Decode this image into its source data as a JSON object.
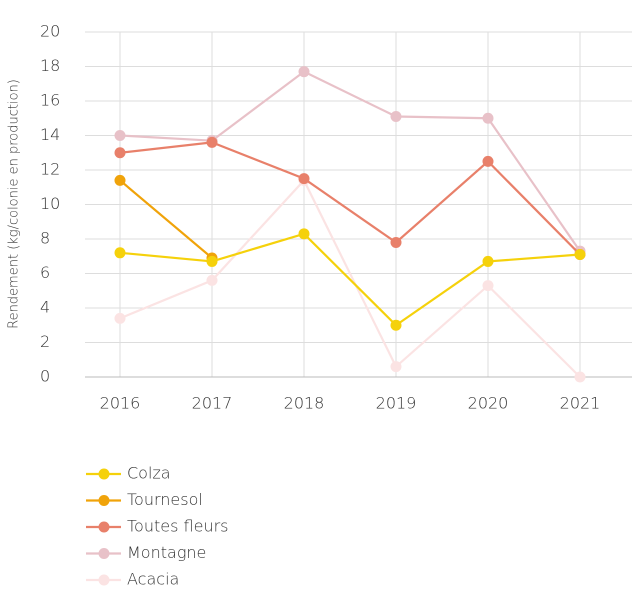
{
  "chart_data": {
    "type": "line",
    "y_label": "Rendement (kg/colonie en production)",
    "categories": [
      "2016",
      "2017",
      "2018",
      "2019",
      "2020",
      "2021"
    ],
    "series": [
      {
        "name": "Colza",
        "color": "#f5d10b",
        "values": [
          7.2,
          6.7,
          8.3,
          3.0,
          6.7,
          7.1
        ]
      },
      {
        "name": "Tournesol",
        "color": "#f0a30a",
        "values": [
          11.4,
          6.9,
          null,
          null,
          null,
          null
        ]
      },
      {
        "name": "Toutes fleurs",
        "color": "#e8806a",
        "values": [
          13.0,
          13.6,
          11.5,
          7.8,
          12.5,
          7.1
        ]
      },
      {
        "name": "Montagne",
        "color": "#e8c1c8",
        "values": [
          14.0,
          13.7,
          17.7,
          15.1,
          15.0,
          7.3
        ]
      },
      {
        "name": "Acacia",
        "color": "#fbe3e3",
        "values": [
          3.4,
          5.6,
          11.4,
          0.6,
          5.3,
          0
        ]
      }
    ],
    "ylim": [
      0,
      20
    ],
    "yticks": [
      0,
      2,
      4,
      6,
      8,
      10,
      12,
      14,
      16,
      18,
      20
    ],
    "grid": true
  }
}
